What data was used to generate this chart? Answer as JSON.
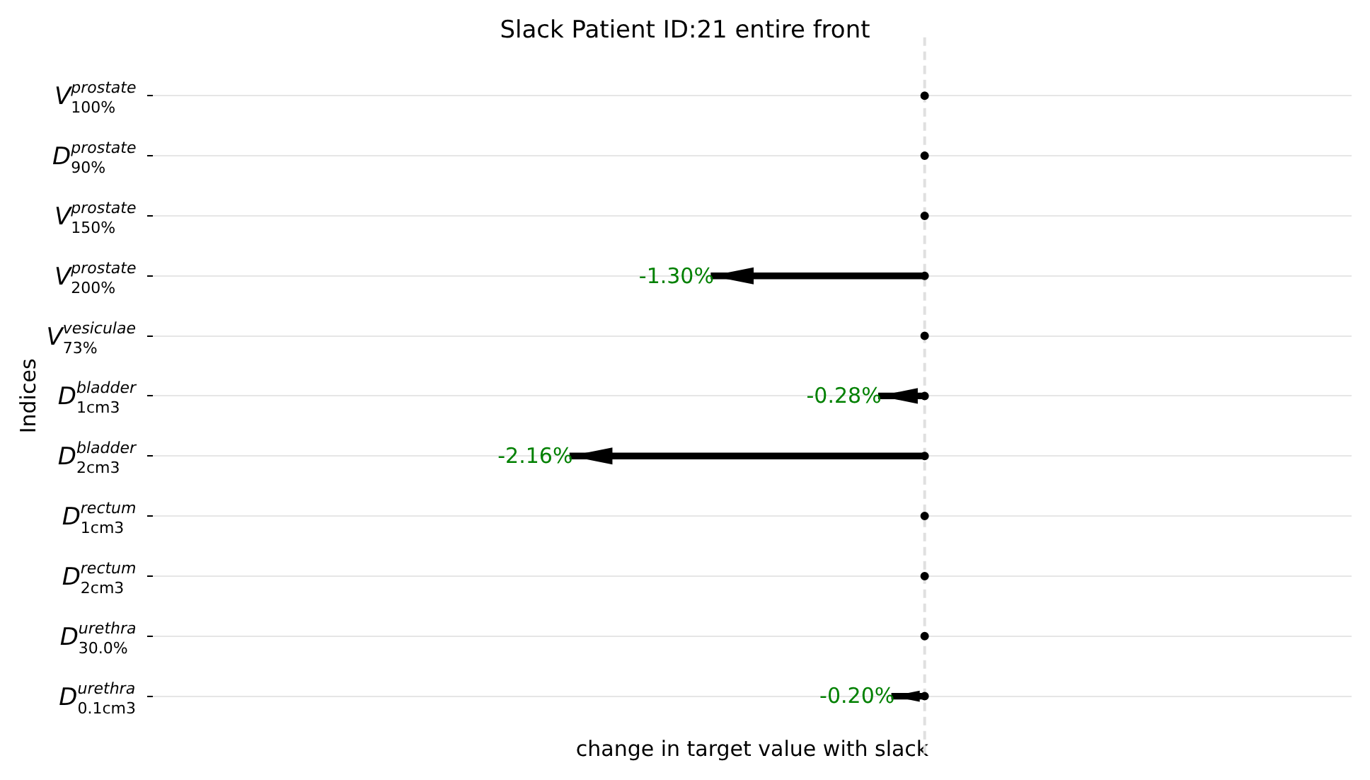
{
  "chart_data": {
    "type": "bar",
    "orientation": "horizontal",
    "title": "Slack Patient ID:21 entire front",
    "xlabel": "change in target value with slack",
    "ylabel": "Indices",
    "categories": [
      "V$^{prostate}$$_{100%}$",
      "D$^{prostate}$$_{90%}$",
      "V$^{prostate}$$_{150%}$",
      "V$^{prostate}$$_{200%}$",
      "V$^{vesiculae}$$_{73%}$",
      "D$^{bladder}$$_{1cm3}$",
      "D$^{bladder}$$_{2cm3}$",
      "D$^{rectum}$$_{1cm3}$",
      "D$^{rectum}$$_{2cm3}$",
      "D$^{urethra}$$_{30.0%}$",
      "D$^{urethra}$$_{0.1cm3}$"
    ],
    "series": [
      {
        "type": "bar",
        "color": "#000000",
        "values": [
          0,
          0,
          0,
          -1.3,
          0,
          -0.28,
          -2.16,
          0,
          0,
          0,
          -0.2
        ],
        "value_labels": [
          null,
          null,
          null,
          "-1.30%",
          null,
          "-0.28%",
          "-2.16%",
          null,
          null,
          null,
          "-0.20%"
        ]
      },
      {
        "type": "scatter",
        "color": "#000000",
        "values": [
          0,
          0,
          0,
          0,
          0,
          0,
          0,
          0,
          0,
          0,
          0
        ]
      }
    ],
    "xlim": [
      -4.7,
      2.6
    ],
    "tick_labels": "y",
    "grid": "y",
    "ref_lines": [
      {
        "axis": "x",
        "value": 0,
        "color": "#e0e0e0",
        "line_style": "dashed"
      }
    ]
  }
}
